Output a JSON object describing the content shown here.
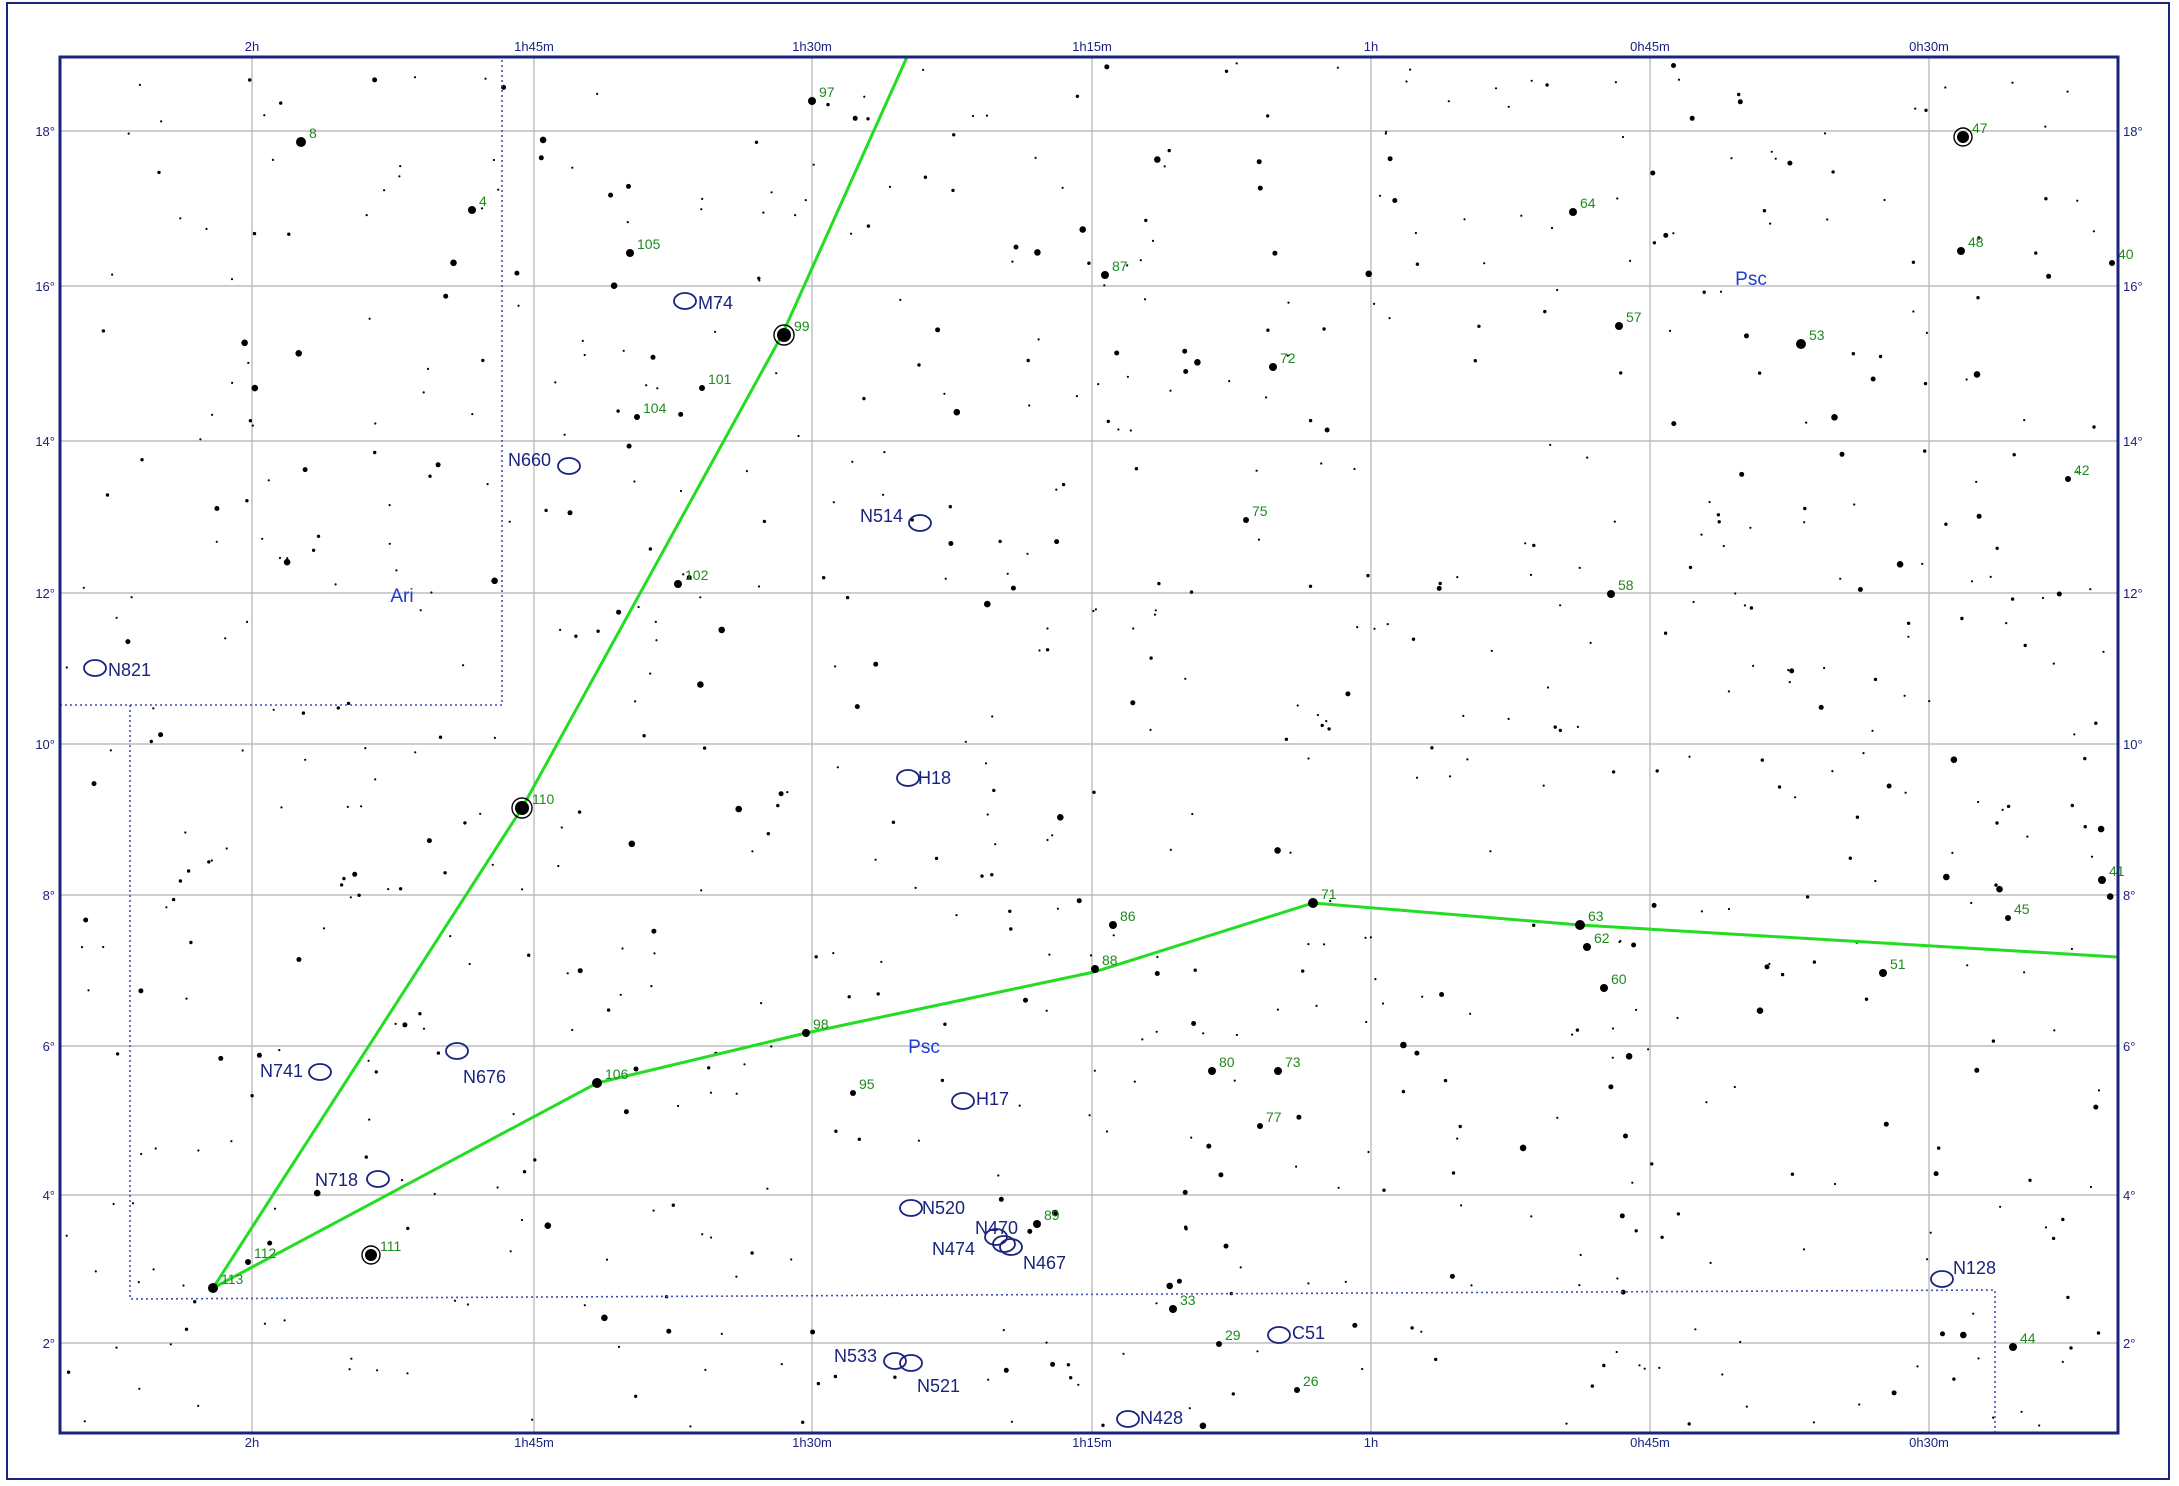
{
  "map": {
    "ra_ticks": [
      "2h",
      "1h45m",
      "1h30m",
      "1h15m",
      "1h",
      "0h45m",
      "0h30m"
    ],
    "dec_ticks": [
      "18°",
      "16°",
      "14°",
      "12°",
      "10°",
      "8°",
      "6°",
      "4°",
      "2°"
    ],
    "constellations": [
      "Ari",
      "Psc",
      "Psc"
    ],
    "labeled_stars": [
      "8",
      "4",
      "97",
      "105",
      "87",
      "64",
      "47",
      "48",
      "40",
      "99",
      "101",
      "104",
      "72",
      "57",
      "53",
      "102",
      "75",
      "58",
      "42",
      "110",
      "71",
      "63",
      "62",
      "45",
      "41",
      "86",
      "88",
      "60",
      "51",
      "98",
      "106",
      "95",
      "80",
      "73",
      "77",
      "112",
      "111",
      "113",
      "89",
      "33",
      "29",
      "26",
      "44"
    ],
    "deep_sky_objects": [
      "M74",
      "N660",
      "N514",
      "N821",
      "H18",
      "N741",
      "N676",
      "H17",
      "N718",
      "N520",
      "N470",
      "N474",
      "N467",
      "N128",
      "N533",
      "N521",
      "N51",
      "N428"
    ],
    "dso_label_display": {
      "N51": "C51"
    },
    "colors": {
      "frame": "#1a237e",
      "grid": "#bdbdbd",
      "figure_lines": "#22dd22",
      "star_labels": "#1e8a1e",
      "dso": "#1a237e",
      "constellation_names": "#1e3cd6",
      "boundaries": "#3f51b5"
    }
  }
}
